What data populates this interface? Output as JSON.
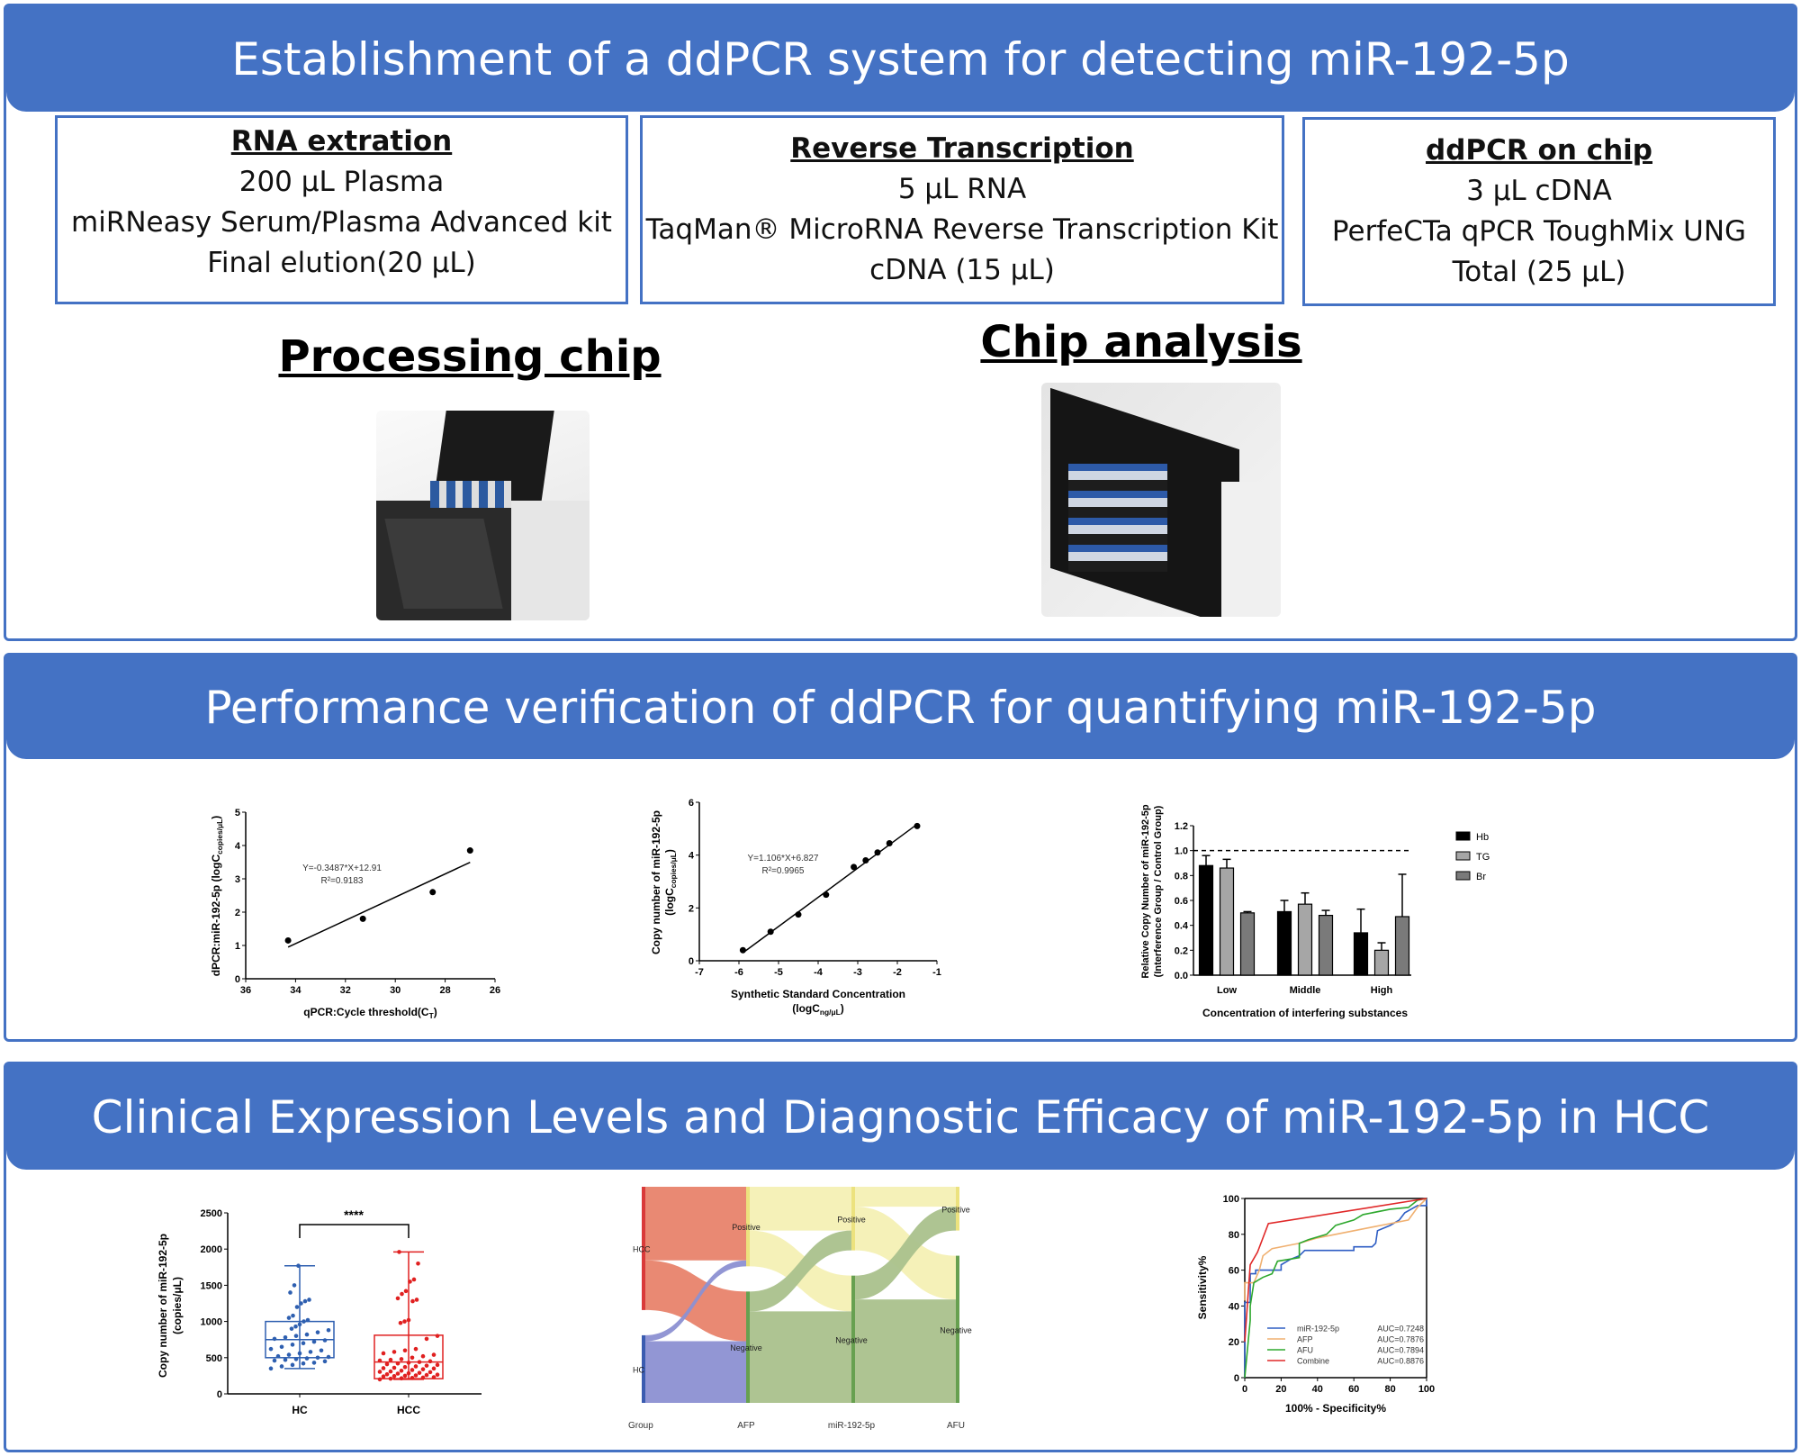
{
  "sections": [
    {
      "title": "Establishment of a ddPCR system for detecting miR-192-5p"
    },
    {
      "title": "Performance verification of ddPCR for quantifying miR-192-5p"
    },
    {
      "title": "Clinical Expression Levels and Diagnostic Efficacy of miR-192-5p in HCC"
    }
  ],
  "steps": [
    {
      "title": "RNA extration",
      "lines": [
        "200 μL Plasma",
        "miRNeasy Serum/Plasma Advanced kit",
        "Final elution(20 μL)"
      ]
    },
    {
      "title": "Reverse Transcription",
      "lines": [
        "5 μL RNA",
        "TaqMan® MicroRNA Reverse Transcription Kit",
        "cDNA (15 μL)"
      ]
    },
    {
      "title": "ddPCR on chip",
      "lines": [
        "3 μL cDNA",
        "PerfeCTa qPCR ToughMix UNG",
        "Total (25 μL)"
      ]
    }
  ],
  "images": {
    "processing_title": "Processing chip",
    "analysis_title": "Chip analysis"
  },
  "accent": "#4472C4",
  "chart_data": [
    {
      "type": "scatter",
      "ylabel": "dPCR:miR-192-5p (logC",
      "ylabel_sub": "copies/μL",
      "ylabel_end": ")",
      "xlabel": "qPCR:Cycle threshold(C",
      "xlabel_sub": "T",
      "xlabel_end": ")",
      "xlim": [
        36,
        26
      ],
      "ylim": [
        0,
        5
      ],
      "xticks": [
        36,
        34,
        32,
        30,
        28,
        26
      ],
      "yticks": [
        0,
        1,
        2,
        3,
        4,
        5
      ],
      "x": [
        34.3,
        31.3,
        28.5,
        27.0
      ],
      "y": [
        1.15,
        1.8,
        2.6,
        3.85
      ],
      "fit": {
        "slope": -0.3487,
        "intercept": 12.91,
        "equation": "Y=-0.3487*X+12.91",
        "r2": "R²=0.9183"
      }
    },
    {
      "type": "scatter",
      "ylabel": "Copy number of miR-192-5p",
      "ylabel2": "(logC",
      "ylabel2_sub": "copies/μL",
      "ylabel2_end": ")",
      "xlabel": "Synthetic Standard Concentration",
      "xlabel2": "(logC",
      "xlabel2_sub": "ng/μL",
      "xlabel2_end": ")",
      "xlim": [
        -7,
        -1
      ],
      "ylim": [
        0,
        6
      ],
      "xticks": [
        -7,
        -6,
        -5,
        -4,
        -3,
        -2,
        -1
      ],
      "yticks": [
        0,
        2,
        4,
        6
      ],
      "x": [
        -5.9,
        -5.2,
        -4.5,
        -3.8,
        -3.1,
        -2.8,
        -2.5,
        -2.2,
        -1.5
      ],
      "y": [
        0.4,
        1.1,
        1.75,
        2.5,
        3.55,
        3.8,
        4.1,
        4.45,
        5.1
      ],
      "fit": {
        "slope": 1.106,
        "intercept": 6.827,
        "equation": "Y=1.106*X+6.827",
        "r2": "R²=0.9965"
      }
    },
    {
      "type": "bar",
      "ylabel": "Relative Copy Number of miR-192-5p",
      "ylabel2": "(Interference Group / Control Group)",
      "xlabel": "Concentration of interfering substances",
      "categories": [
        "Low",
        "Middle",
        "High"
      ],
      "ylim": [
        0,
        1.2
      ],
      "yticks": [
        "0.0",
        "0.2",
        "0.4",
        "0.6",
        "0.8",
        "1.0",
        "1.2"
      ],
      "reference_line": 1.0,
      "legend": "right",
      "series": [
        {
          "name": "Hb",
          "color": "#000000",
          "values": [
            0.88,
            0.51,
            0.34
          ],
          "errors": [
            0.08,
            0.09,
            0.19
          ]
        },
        {
          "name": "TG",
          "color": "#A6A6A6",
          "values": [
            0.86,
            0.57,
            0.2
          ],
          "errors": [
            0.07,
            0.09,
            0.06
          ]
        },
        {
          "name": "Br",
          "color": "#7A7A7A",
          "values": [
            0.5,
            0.48,
            0.47
          ],
          "errors": [
            0.01,
            0.04,
            0.34
          ]
        }
      ]
    },
    {
      "type": "box",
      "ylabel": "Copy number of miR-192-5p",
      "ylabel2": "(copies/μL)",
      "categories": [
        "HC",
        "HCC"
      ],
      "ylim": [
        0,
        2500
      ],
      "yticks": [
        0,
        500,
        1000,
        1500,
        2000,
        2500
      ],
      "significance": "****",
      "groups": [
        {
          "name": "HC",
          "color": "#2E5FB0",
          "min": 350,
          "q1": 500,
          "median": 750,
          "q3": 1000,
          "max": 1770,
          "points": [
            350,
            380,
            400,
            420,
            430,
            450,
            460,
            470,
            480,
            490,
            500,
            510,
            520,
            540,
            560,
            580,
            600,
            620,
            650,
            680,
            700,
            720,
            740,
            760,
            780,
            800,
            820,
            850,
            880,
            900,
            930,
            960,
            1000,
            1020,
            1050,
            1080,
            1200,
            1250,
            1280,
            1300,
            1400,
            1500,
            1770
          ]
        },
        {
          "name": "HCC",
          "color": "#E02020",
          "min": 200,
          "q1": 210,
          "median": 440,
          "q3": 810,
          "max": 1960,
          "points": [
            200,
            210,
            215,
            220,
            225,
            230,
            240,
            245,
            250,
            255,
            260,
            265,
            270,
            280,
            285,
            290,
            300,
            305,
            310,
            320,
            330,
            340,
            350,
            355,
            360,
            370,
            380,
            390,
            400,
            410,
            420,
            430,
            440,
            450,
            460,
            470,
            480,
            500,
            520,
            540,
            560,
            580,
            600,
            620,
            760,
            800,
            980,
            1000,
            1020,
            1280,
            1300,
            1320,
            1380,
            1420,
            1550,
            1580,
            1800,
            1960
          ]
        }
      ]
    },
    {
      "type": "sankey",
      "axes": [
        "Group",
        "AFP",
        "miR-192-5p",
        "AFU"
      ],
      "nodes": [
        {
          "id": "HCC",
          "label": "HCC",
          "col": 0,
          "color": "#E8836B",
          "bar": "#D93A3A"
        },
        {
          "id": "HC",
          "label": "HC",
          "col": 0,
          "color": "#8C90D2",
          "bar": "#3B5CB0"
        },
        {
          "id": "AFP+",
          "label": "Positive",
          "col": 1,
          "color": "#F4F0B4",
          "bar": "#ECE27E"
        },
        {
          "id": "AFP-",
          "label": "Negative",
          "col": 1,
          "color": "#AAC18C",
          "bar": "#67A050"
        },
        {
          "id": "MIR+",
          "label": "Positive",
          "col": 2,
          "color": "#F4F0B4",
          "bar": "#ECE27E"
        },
        {
          "id": "MIR-",
          "label": "Negative",
          "col": 2,
          "color": "#AAC18C",
          "bar": "#67A050"
        },
        {
          "id": "AFU+",
          "label": "Positive",
          "col": 3,
          "color": "#F4F0B4",
          "bar": "#ECE27E"
        },
        {
          "id": "AFU-",
          "label": "Negative",
          "col": 3,
          "color": "#AAC18C",
          "bar": "#67A050"
        }
      ],
      "links": [
        {
          "source": "HCC",
          "target": "AFP+",
          "value": 37
        },
        {
          "source": "HCC",
          "target": "AFP-",
          "value": 25
        },
        {
          "source": "HC",
          "target": "AFP+",
          "value": 3
        },
        {
          "source": "HC",
          "target": "AFP-",
          "value": 31
        },
        {
          "source": "AFP+",
          "target": "MIR+",
          "value": 22
        },
        {
          "source": "AFP+",
          "target": "MIR-",
          "value": 18
        },
        {
          "source": "AFP-",
          "target": "MIR+",
          "value": 10
        },
        {
          "source": "AFP-",
          "target": "MIR-",
          "value": 46
        },
        {
          "source": "MIR+",
          "target": "AFU+",
          "value": 10
        },
        {
          "source": "MIR+",
          "target": "AFU-",
          "value": 22
        },
        {
          "source": "MIR-",
          "target": "AFU+",
          "value": 12
        },
        {
          "source": "MIR-",
          "target": "AFU-",
          "value": 52
        }
      ]
    },
    {
      "type": "line",
      "ylabel": "Sensitivity%",
      "xlabel": "100% - Specificity%",
      "xlim": [
        0,
        100
      ],
      "ylim": [
        0,
        100
      ],
      "xticks": [
        0,
        20,
        40,
        60,
        80,
        100
      ],
      "yticks": [
        0,
        20,
        40,
        60,
        80,
        100
      ],
      "legend": "bottom-right",
      "series": [
        {
          "name": "miR-192-5p",
          "auc": "AUC=0.7248",
          "color": "#2F5EC4",
          "x": [
            0,
            0,
            3,
            3,
            6,
            6,
            20,
            20,
            25,
            30,
            33,
            60,
            60,
            70,
            72,
            73,
            80,
            85,
            88,
            95,
            100,
            100
          ],
          "y": [
            0,
            42,
            42,
            58,
            58,
            60,
            60,
            63,
            66,
            68,
            71,
            71,
            73,
            73,
            75,
            82,
            85,
            88,
            92,
            96,
            96,
            100
          ]
        },
        {
          "name": "AFP",
          "auc": "AUC=0.7876",
          "color": "#F0B070",
          "x": [
            0,
            0,
            5,
            8,
            10,
            15,
            30,
            40,
            50,
            60,
            70,
            80,
            90,
            95,
            100
          ],
          "y": [
            43,
            53,
            53,
            60,
            68,
            72,
            75,
            78,
            80,
            82,
            84,
            86,
            88,
            95,
            100
          ]
        },
        {
          "name": "AFU",
          "auc": "AUC=0.7894",
          "color": "#2EA82E",
          "x": [
            0,
            3,
            3,
            5,
            10,
            15,
            18,
            30,
            30,
            35,
            45,
            50,
            60,
            65,
            80,
            90,
            95,
            100
          ],
          "y": [
            0,
            32,
            40,
            53,
            56,
            58,
            65,
            67,
            75,
            77,
            80,
            85,
            88,
            91,
            94,
            95,
            99,
            100
          ]
        },
        {
          "name": "Combine",
          "auc": "AUC=0.8876",
          "color": "#E02828",
          "x": [
            0,
            3,
            7,
            13,
            100
          ],
          "y": [
            20,
            63,
            70,
            86,
            100
          ]
        }
      ]
    }
  ]
}
